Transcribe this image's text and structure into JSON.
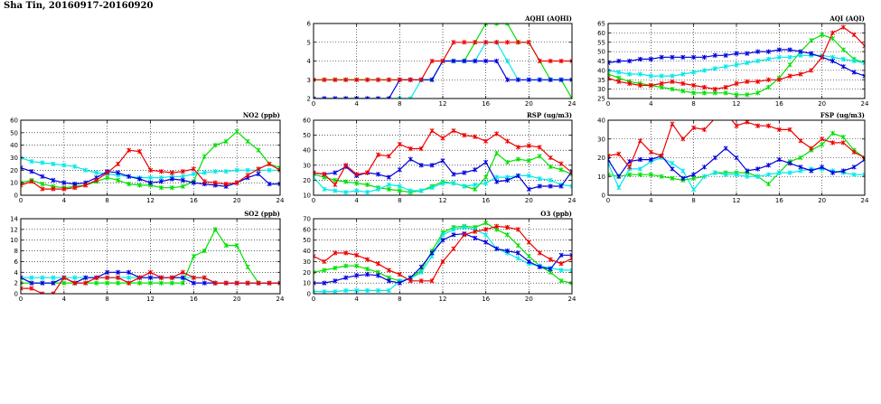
{
  "page_title": "Sha Tin, 20160917-20160920",
  "colors": {
    "series_1": "#00e000",
    "series_2": "#00e8e8",
    "series_3": "#0000dd",
    "series_4": "#ee0000",
    "grid": "#000000"
  },
  "chart_data": [
    {
      "id": "aqhi",
      "type": "line",
      "title": "AQHI (AQHI)",
      "xlim": [
        0,
        24
      ],
      "ylim": [
        2,
        6
      ],
      "xticks": [
        0,
        4,
        8,
        12,
        16,
        20,
        24
      ],
      "yticks": [
        2,
        3,
        4,
        5,
        6
      ],
      "x": [
        0,
        1,
        2,
        3,
        4,
        5,
        6,
        7,
        8,
        9,
        10,
        11,
        12,
        13,
        14,
        15,
        16,
        17,
        18,
        19,
        20,
        21,
        22,
        23,
        24
      ],
      "series": [
        {
          "color": "#00e000",
          "values": [
            3,
            3,
            3,
            3,
            3,
            3,
            3,
            3,
            3,
            3,
            3,
            3,
            4,
            4,
            4,
            5,
            6,
            6,
            6,
            5,
            5,
            4,
            3,
            3,
            2
          ]
        },
        {
          "color": "#00e8e8",
          "values": [
            2,
            2,
            2,
            2,
            2,
            2,
            2,
            2,
            2,
            2,
            3,
            3,
            4,
            4,
            4,
            4,
            5,
            5,
            4,
            3,
            3,
            3,
            3,
            3,
            3
          ]
        },
        {
          "color": "#0000dd",
          "values": [
            2,
            2,
            2,
            2,
            2,
            2,
            2,
            2,
            3,
            3,
            3,
            3,
            4,
            4,
            4,
            4,
            4,
            4,
            3,
            3,
            3,
            3,
            3,
            3,
            3
          ]
        },
        {
          "color": "#ee0000",
          "values": [
            3,
            3,
            3,
            3,
            3,
            3,
            3,
            3,
            3,
            3,
            3,
            4,
            4,
            5,
            5,
            5,
            5,
            5,
            5,
            5,
            5,
            4,
            4,
            4,
            4
          ]
        }
      ]
    },
    {
      "id": "aqi",
      "type": "line",
      "title": "AQI (AQI)",
      "xlim": [
        0,
        24
      ],
      "ylim": [
        25,
        65
      ],
      "xticks": [
        0,
        4,
        8,
        12,
        16,
        20,
        24
      ],
      "yticks": [
        25,
        30,
        35,
        40,
        45,
        50,
        55,
        60,
        65
      ],
      "x": [
        0,
        1,
        2,
        3,
        4,
        5,
        6,
        7,
        8,
        9,
        10,
        11,
        12,
        13,
        14,
        15,
        16,
        17,
        18,
        19,
        20,
        21,
        22,
        23,
        24
      ],
      "series": [
        {
          "color": "#00e000",
          "values": [
            38,
            36,
            34,
            33,
            32,
            31,
            30,
            29,
            28,
            28,
            28,
            28,
            27,
            27,
            28,
            31,
            36,
            43,
            50,
            56,
            59,
            57,
            51,
            46,
            44
          ]
        },
        {
          "color": "#00e8e8",
          "values": [
            40,
            39,
            38,
            38,
            37,
            37,
            37,
            38,
            39,
            40,
            41,
            42,
            43,
            44,
            45,
            46,
            47,
            47,
            48,
            48,
            48,
            47,
            46,
            45,
            44
          ]
        },
        {
          "color": "#0000dd",
          "values": [
            44,
            45,
            45,
            46,
            46,
            47,
            47,
            47,
            47,
            47,
            48,
            48,
            49,
            49,
            50,
            50,
            51,
            51,
            50,
            49,
            47,
            45,
            42,
            39,
            37
          ]
        },
        {
          "color": "#ee0000",
          "values": [
            36,
            34,
            33,
            32,
            32,
            33,
            34,
            33,
            32,
            31,
            30,
            31,
            33,
            34,
            34,
            35,
            35,
            37,
            38,
            40,
            47,
            60,
            63,
            59,
            53
          ]
        }
      ]
    },
    {
      "id": "no2",
      "type": "line",
      "title": "NO2 (ppb)",
      "xlim": [
        0,
        24
      ],
      "ylim": [
        0,
        60
      ],
      "xticks": [
        0,
        4,
        8,
        12,
        16,
        20,
        24
      ],
      "yticks": [
        0,
        10,
        20,
        30,
        40,
        50,
        60
      ],
      "x": [
        0,
        1,
        2,
        3,
        4,
        5,
        6,
        7,
        8,
        9,
        10,
        11,
        12,
        13,
        14,
        15,
        16,
        17,
        18,
        19,
        20,
        21,
        22,
        23,
        24
      ],
      "series": [
        {
          "color": "#00e000",
          "values": [
            10,
            12,
            9,
            7,
            6,
            7,
            8,
            11,
            14,
            12,
            9,
            8,
            8,
            6,
            6,
            7,
            11,
            31,
            40,
            43,
            51,
            43,
            36,
            25,
            22
          ]
        },
        {
          "color": "#00e8e8",
          "values": [
            30,
            27,
            26,
            25,
            24,
            23,
            20,
            18,
            17,
            16,
            15,
            14,
            14,
            14,
            15,
            15,
            17,
            18,
            19,
            19,
            20,
            20,
            20,
            20,
            20
          ]
        },
        {
          "color": "#0000dd",
          "values": [
            22,
            19,
            15,
            12,
            10,
            9,
            10,
            14,
            19,
            18,
            15,
            13,
            10,
            11,
            13,
            12,
            10,
            9,
            8,
            7,
            10,
            14,
            17,
            9,
            9
          ]
        },
        {
          "color": "#ee0000",
          "values": [
            8,
            11,
            5,
            5,
            5,
            6,
            8,
            12,
            18,
            25,
            36,
            35,
            20,
            19,
            18,
            19,
            21,
            11,
            10,
            9,
            10,
            16,
            21,
            25,
            20
          ]
        }
      ]
    },
    {
      "id": "rsp",
      "type": "line",
      "title": "RSP (ug/m3)",
      "xlim": [
        0,
        24
      ],
      "ylim": [
        10,
        60
      ],
      "xticks": [
        0,
        4,
        8,
        12,
        16,
        20,
        24
      ],
      "yticks": [
        10,
        20,
        30,
        40,
        50,
        60
      ],
      "x": [
        0,
        1,
        2,
        3,
        4,
        5,
        6,
        7,
        8,
        9,
        10,
        11,
        12,
        13,
        14,
        15,
        16,
        17,
        18,
        19,
        20,
        21,
        22,
        23,
        24
      ],
      "series": [
        {
          "color": "#00e000",
          "values": [
            24,
            22,
            20,
            19,
            18,
            17,
            15,
            14,
            13,
            12,
            13,
            16,
            19,
            18,
            16,
            14,
            22,
            38,
            32,
            34,
            33,
            36,
            29,
            27,
            24
          ]
        },
        {
          "color": "#00e8e8",
          "values": [
            22,
            14,
            13,
            12,
            13,
            12,
            14,
            17,
            16,
            13,
            13,
            15,
            18,
            18,
            16,
            17,
            18,
            22,
            22,
            23,
            23,
            21,
            20,
            17,
            16
          ]
        },
        {
          "color": "#0000dd",
          "values": [
            25,
            24,
            25,
            29,
            23,
            25,
            24,
            22,
            27,
            34,
            30,
            30,
            33,
            24,
            25,
            27,
            32,
            19,
            20,
            23,
            14,
            16,
            16,
            16,
            26
          ]
        },
        {
          "color": "#ee0000",
          "values": [
            25,
            24,
            17,
            30,
            24,
            25,
            37,
            36,
            44,
            41,
            41,
            53,
            48,
            53,
            50,
            49,
            46,
            51,
            46,
            42,
            43,
            42,
            35,
            31,
            25
          ]
        }
      ]
    },
    {
      "id": "fsp",
      "type": "line",
      "title": "FSP (ug/m3)",
      "xlim": [
        0,
        24
      ],
      "ylim": [
        0,
        40
      ],
      "xticks": [
        0,
        4,
        8,
        12,
        16,
        20,
        24
      ],
      "yticks": [
        0,
        10,
        20,
        30,
        40
      ],
      "x": [
        0,
        1,
        2,
        3,
        4,
        5,
        6,
        7,
        8,
        9,
        10,
        11,
        12,
        13,
        14,
        15,
        16,
        17,
        18,
        19,
        20,
        21,
        22,
        23,
        24
      ],
      "series": [
        {
          "color": "#00e000",
          "values": [
            11,
            10,
            11,
            11,
            11,
            10,
            9,
            8,
            9,
            10,
            12,
            12,
            12,
            12,
            10,
            6,
            12,
            18,
            20,
            24,
            27,
            33,
            31,
            24,
            20
          ]
        },
        {
          "color": "#00e8e8",
          "values": [
            17,
            4,
            14,
            14,
            18,
            20,
            17,
            13,
            3,
            10,
            12,
            11,
            11,
            10,
            10,
            11,
            12,
            12,
            13,
            14,
            14,
            13,
            12,
            11,
            11
          ]
        },
        {
          "color": "#0000dd",
          "values": [
            19,
            10,
            18,
            19,
            19,
            21,
            14,
            9,
            11,
            15,
            20,
            25,
            20,
            13,
            14,
            16,
            19,
            17,
            15,
            13,
            15,
            12,
            13,
            15,
            19
          ]
        },
        {
          "color": "#ee0000",
          "values": [
            21,
            22,
            15,
            29,
            23,
            21,
            38,
            30,
            36,
            35,
            41,
            44,
            37,
            39,
            37,
            37,
            35,
            35,
            29,
            25,
            30,
            28,
            28,
            23,
            20
          ]
        }
      ]
    },
    {
      "id": "so2",
      "type": "line",
      "title": "SO2 (ppb)",
      "xlim": [
        0,
        24
      ],
      "ylim": [
        0,
        14
      ],
      "xticks": [
        0,
        4,
        8,
        12,
        16,
        20,
        24
      ],
      "yticks": [
        0,
        2,
        4,
        6,
        8,
        10,
        12,
        14
      ],
      "x": [
        0,
        1,
        2,
        3,
        4,
        5,
        6,
        7,
        8,
        9,
        10,
        11,
        12,
        13,
        14,
        15,
        16,
        17,
        18,
        19,
        20,
        21,
        22,
        23,
        24
      ],
      "series": [
        {
          "color": "#00e000",
          "values": [
            2,
            2,
            2,
            2,
            2,
            2,
            2,
            2,
            2,
            2,
            2,
            2,
            2,
            2,
            2,
            2,
            7,
            8,
            12,
            9,
            9,
            5,
            2,
            2,
            2
          ]
        },
        {
          "color": "#00e8e8",
          "values": [
            3,
            3,
            3,
            3,
            3,
            3,
            3,
            3,
            3,
            3,
            3,
            3,
            3,
            3,
            3,
            3,
            3,
            3,
            2,
            2,
            2,
            2,
            2,
            2,
            2
          ]
        },
        {
          "color": "#0000dd",
          "values": [
            3,
            2,
            2,
            2,
            3,
            2,
            3,
            3,
            4,
            4,
            4,
            3,
            3,
            3,
            3,
            3,
            2,
            2,
            2,
            2,
            2,
            2,
            2,
            2,
            2
          ]
        },
        {
          "color": "#ee0000",
          "values": [
            1,
            1,
            0,
            0,
            3,
            2,
            2,
            3,
            3,
            3,
            2,
            3,
            4,
            3,
            3,
            4,
            3,
            3,
            2,
            2,
            2,
            2,
            2,
            2,
            2
          ]
        }
      ]
    },
    {
      "id": "o3",
      "type": "line",
      "title": "O3 (ppb)",
      "xlim": [
        0,
        24
      ],
      "ylim": [
        0,
        70
      ],
      "xticks": [
        0,
        4,
        8,
        12,
        16,
        20,
        24
      ],
      "yticks": [
        0,
        10,
        20,
        30,
        40,
        50,
        60,
        70
      ],
      "x": [
        0,
        1,
        2,
        3,
        4,
        5,
        6,
        7,
        8,
        9,
        10,
        11,
        12,
        13,
        14,
        15,
        16,
        17,
        18,
        19,
        20,
        21,
        22,
        23,
        24
      ],
      "series": [
        {
          "color": "#00e000",
          "values": [
            20,
            22,
            24,
            26,
            26,
            23,
            20,
            15,
            12,
            14,
            22,
            40,
            57,
            62,
            63,
            62,
            66,
            60,
            55,
            45,
            35,
            26,
            20,
            12,
            10
          ]
        },
        {
          "color": "#00e8e8",
          "values": [
            2,
            2,
            2,
            3,
            3,
            3,
            3,
            3,
            12,
            14,
            20,
            35,
            55,
            60,
            62,
            60,
            55,
            42,
            38,
            33,
            28,
            26,
            24,
            22,
            22
          ]
        },
        {
          "color": "#0000dd",
          "values": [
            10,
            10,
            12,
            15,
            17,
            18,
            17,
            12,
            10,
            15,
            25,
            38,
            50,
            55,
            56,
            52,
            48,
            42,
            40,
            38,
            30,
            25,
            23,
            36,
            36
          ]
        },
        {
          "color": "#ee0000",
          "values": [
            35,
            30,
            38,
            38,
            36,
            32,
            28,
            22,
            18,
            12,
            12,
            12,
            30,
            42,
            55,
            58,
            60,
            63,
            62,
            60,
            48,
            38,
            32,
            28,
            33
          ]
        }
      ]
    }
  ]
}
